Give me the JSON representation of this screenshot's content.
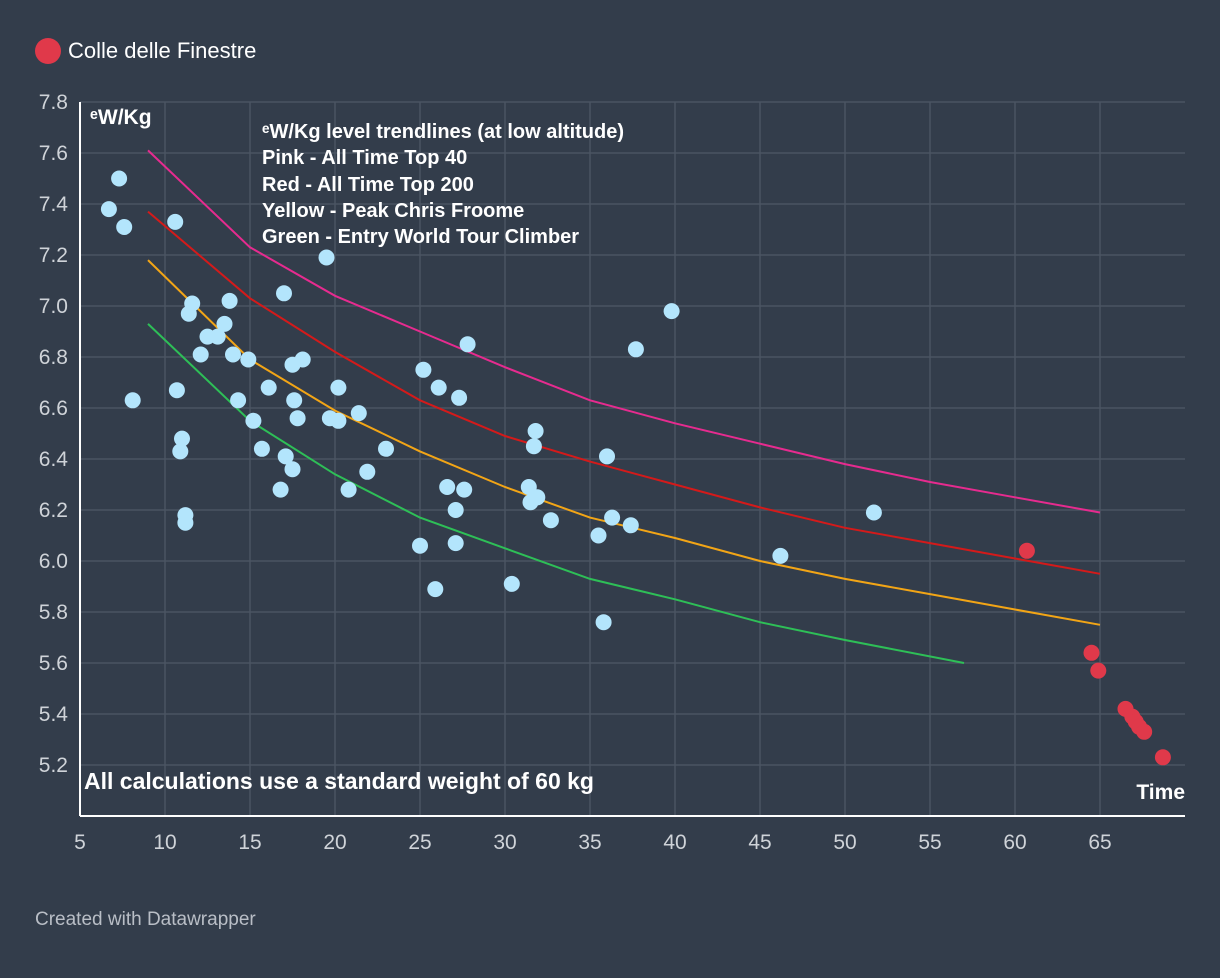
{
  "colors": {
    "background": "#333d4b",
    "grid": "#4b5563",
    "axis": "#ffffff",
    "point_default": "#b3e5fc",
    "point_highlight": "#e0394a",
    "pink": "#e62b8f",
    "red": "#d41a1a",
    "yellow": "#f2a516",
    "green": "#2ebf57"
  },
  "chart_data": {
    "type": "scatter",
    "xlabel": "Time",
    "ylabel": "ᵉW/Kg",
    "xlim": [
      5,
      70
    ],
    "ylim": [
      5,
      7.8
    ],
    "x_ticks": [
      "5",
      "10",
      "15",
      "20",
      "25",
      "30",
      "35",
      "40",
      "45",
      "50",
      "55",
      "60",
      "65"
    ],
    "y_ticks": [
      "5.2",
      "5.4",
      "5.6",
      "5.8",
      "6.0",
      "6.2",
      "6.4",
      "6.6",
      "6.8",
      "7.0",
      "7.2",
      "7.4",
      "7.6",
      "7.8"
    ],
    "grid": true,
    "legend": {
      "position": "top-left",
      "items": [
        "Colle delle Finestre"
      ]
    },
    "annotation_lines": [
      "ᵉW/Kg level trendlines (at low altitude)",
      "Pink - All Time Top 40",
      "Red - All Time Top 200",
      "Yellow - Peak Chris Froome",
      "Green - Entry World Tour Climber"
    ],
    "footnote": "All calculations use a standard weight of 60 kg",
    "series": [
      {
        "name": "",
        "color": "#b3e5fc",
        "points": [
          [
            6.7,
            7.38
          ],
          [
            7.3,
            7.5
          ],
          [
            7.6,
            7.31
          ],
          [
            8.1,
            6.63
          ],
          [
            10.6,
            7.33
          ],
          [
            10.7,
            6.67
          ],
          [
            10.9,
            6.43
          ],
          [
            11.0,
            6.48
          ],
          [
            11.2,
            6.18
          ],
          [
            11.2,
            6.15
          ],
          [
            11.4,
            6.97
          ],
          [
            11.6,
            7.01
          ],
          [
            12.1,
            6.81
          ],
          [
            12.5,
            6.88
          ],
          [
            13.1,
            6.88
          ],
          [
            13.5,
            6.93
          ],
          [
            13.8,
            7.02
          ],
          [
            14.0,
            6.81
          ],
          [
            14.3,
            6.63
          ],
          [
            14.9,
            6.79
          ],
          [
            15.2,
            6.55
          ],
          [
            15.7,
            6.44
          ],
          [
            16.1,
            6.68
          ],
          [
            16.8,
            6.28
          ],
          [
            17.0,
            7.05
          ],
          [
            17.1,
            6.41
          ],
          [
            17.5,
            6.77
          ],
          [
            17.6,
            6.63
          ],
          [
            17.5,
            6.36
          ],
          [
            17.8,
            6.56
          ],
          [
            18.1,
            6.79
          ],
          [
            19.5,
            7.19
          ],
          [
            19.7,
            6.56
          ],
          [
            20.2,
            6.68
          ],
          [
            20.2,
            6.55
          ],
          [
            20.8,
            6.28
          ],
          [
            21.4,
            6.58
          ],
          [
            21.9,
            6.35
          ],
          [
            23.0,
            6.44
          ],
          [
            25.0,
            6.06
          ],
          [
            25.2,
            6.75
          ],
          [
            25.9,
            5.89
          ],
          [
            26.1,
            6.68
          ],
          [
            26.6,
            6.29
          ],
          [
            27.1,
            6.2
          ],
          [
            27.1,
            6.07
          ],
          [
            27.3,
            6.64
          ],
          [
            27.6,
            6.28
          ],
          [
            27.8,
            6.85
          ],
          [
            30.4,
            5.91
          ],
          [
            31.4,
            6.29
          ],
          [
            31.5,
            6.23
          ],
          [
            31.7,
            6.45
          ],
          [
            31.8,
            6.51
          ],
          [
            31.9,
            6.25
          ],
          [
            32.7,
            6.16
          ],
          [
            35.5,
            6.1
          ],
          [
            35.8,
            5.76
          ],
          [
            36.0,
            6.41
          ],
          [
            36.3,
            6.17
          ],
          [
            37.4,
            6.14
          ],
          [
            37.7,
            6.83
          ],
          [
            39.8,
            6.98
          ],
          [
            46.2,
            6.02
          ],
          [
            51.7,
            6.19
          ]
        ]
      },
      {
        "name": "Colle delle Finestre",
        "color": "#e0394a",
        "points": [
          [
            60.7,
            6.04
          ],
          [
            64.5,
            5.64
          ],
          [
            64.9,
            5.57
          ],
          [
            66.5,
            5.42
          ],
          [
            66.9,
            5.39
          ],
          [
            67.1,
            5.37
          ],
          [
            67.3,
            5.35
          ],
          [
            67.6,
            5.33
          ],
          [
            68.7,
            5.23
          ]
        ]
      }
    ],
    "trendlines": [
      {
        "color": "#e62b8f",
        "points": [
          [
            9,
            7.61
          ],
          [
            15,
            7.23
          ],
          [
            20,
            7.04
          ],
          [
            25,
            6.9
          ],
          [
            30,
            6.76
          ],
          [
            35,
            6.63
          ],
          [
            40,
            6.54
          ],
          [
            45,
            6.46
          ],
          [
            50,
            6.38
          ],
          [
            55,
            6.31
          ],
          [
            60,
            6.25
          ],
          [
            65,
            6.19
          ]
        ]
      },
      {
        "color": "#d41a1a",
        "points": [
          [
            9,
            7.37
          ],
          [
            15,
            7.03
          ],
          [
            20,
            6.82
          ],
          [
            25,
            6.63
          ],
          [
            30,
            6.49
          ],
          [
            35,
            6.39
          ],
          [
            40,
            6.3
          ],
          [
            45,
            6.21
          ],
          [
            50,
            6.13
          ],
          [
            55,
            6.07
          ],
          [
            60,
            6.01
          ],
          [
            65,
            5.95
          ]
        ]
      },
      {
        "color": "#f2a516",
        "points": [
          [
            9,
            7.18
          ],
          [
            15,
            6.79
          ],
          [
            20,
            6.59
          ],
          [
            25,
            6.43
          ],
          [
            30,
            6.29
          ],
          [
            35,
            6.17
          ],
          [
            40,
            6.09
          ],
          [
            45,
            6.0
          ],
          [
            50,
            5.93
          ],
          [
            55,
            5.87
          ],
          [
            60,
            5.81
          ],
          [
            65,
            5.75
          ]
        ]
      },
      {
        "color": "#2ebf57",
        "points": [
          [
            9,
            6.93
          ],
          [
            15,
            6.55
          ],
          [
            20,
            6.34
          ],
          [
            25,
            6.17
          ],
          [
            30,
            6.05
          ],
          [
            35,
            5.93
          ],
          [
            40,
            5.85
          ],
          [
            45,
            5.76
          ],
          [
            50,
            5.69
          ],
          [
            57,
            5.6
          ]
        ]
      }
    ]
  },
  "credit": "Created with Datawrapper"
}
